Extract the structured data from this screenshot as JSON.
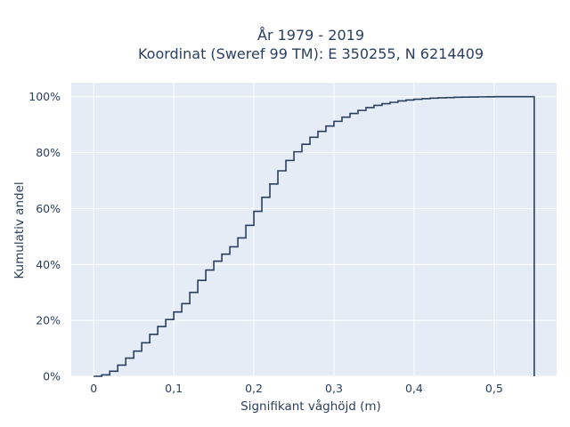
{
  "chart_data": {
    "type": "line",
    "step": true,
    "title_lines": [
      "År 1979 - 2019",
      "Koordinat (Sweref 99 TM): E 350255, N 6214409"
    ],
    "xlabel": "Signifikant våghöjd (m)",
    "ylabel": "Kumulativ andel",
    "xlim": [
      -0.028,
      0.578
    ],
    "ylim": [
      0,
      1.05
    ],
    "x_ticks": [
      0,
      0.1,
      0.2,
      0.3,
      0.4,
      0.5
    ],
    "x_tick_labels": [
      "0",
      "0,1",
      "0,2",
      "0,3",
      "0,4",
      "0,5"
    ],
    "y_ticks": [
      0,
      0.2,
      0.4,
      0.6,
      0.8,
      1.0
    ],
    "y_tick_labels": [
      "0%",
      "20%",
      "40%",
      "60%",
      "80%",
      "100%"
    ],
    "grid": true,
    "legend": "none",
    "colors": {
      "plot_bg": "#e5ecf6",
      "grid": "#ffffff",
      "line": "#2a3f5f",
      "text": "#2a3f5f"
    },
    "series": [
      {
        "values_note": "",
        "x": [
          0,
          0.01,
          0.02,
          0.03,
          0.04,
          0.05,
          0.06,
          0.07,
          0.08,
          0.09,
          0.1,
          0.11,
          0.12,
          0.13,
          0.14,
          0.15,
          0.16,
          0.17,
          0.18,
          0.19,
          0.2,
          0.21,
          0.22,
          0.23,
          0.24,
          0.25,
          0.26,
          0.27,
          0.28,
          0.29,
          0.3,
          0.31,
          0.32,
          0.33,
          0.34,
          0.35,
          0.36,
          0.37,
          0.38,
          0.39,
          0.4,
          0.41,
          0.42,
          0.43,
          0.44,
          0.45,
          0.46,
          0.47,
          0.48,
          0.49,
          0.5,
          0.55
        ],
        "y": [
          0.0,
          0.005,
          0.018,
          0.04,
          0.065,
          0.09,
          0.12,
          0.15,
          0.178,
          0.203,
          0.23,
          0.26,
          0.3,
          0.343,
          0.38,
          0.412,
          0.437,
          0.463,
          0.495,
          0.54,
          0.59,
          0.64,
          0.688,
          0.735,
          0.772,
          0.803,
          0.83,
          0.855,
          0.876,
          0.895,
          0.912,
          0.927,
          0.94,
          0.951,
          0.961,
          0.969,
          0.975,
          0.98,
          0.985,
          0.988,
          0.991,
          0.993,
          0.995,
          0.996,
          0.997,
          0.998,
          0.9985,
          0.999,
          0.9995,
          0.9998,
          1.0,
          1.0
        ]
      }
    ]
  }
}
